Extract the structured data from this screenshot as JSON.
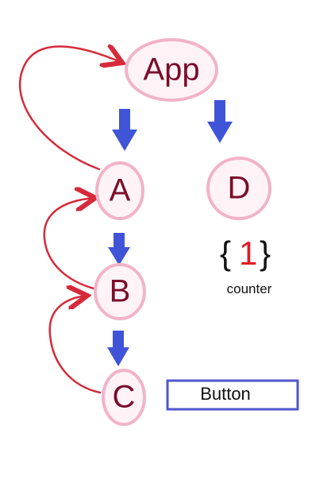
{
  "diagram": {
    "nodes": {
      "app": "App",
      "a": "A",
      "b": "B",
      "c": "C",
      "d": "D"
    },
    "counter": {
      "open_brace": "{",
      "value": "1",
      "close_brace": "}",
      "label": "counter"
    },
    "button": {
      "label": "Button"
    },
    "colors": {
      "node_fill": "#fff3f7",
      "node_border": "#f2b3c9",
      "node_text": "#7a0d2a",
      "down_arrow": "#4054d8",
      "return_arrow": "#d62a3a",
      "counter_value": "#e21c24",
      "button_border": "#4e57c9"
    }
  }
}
